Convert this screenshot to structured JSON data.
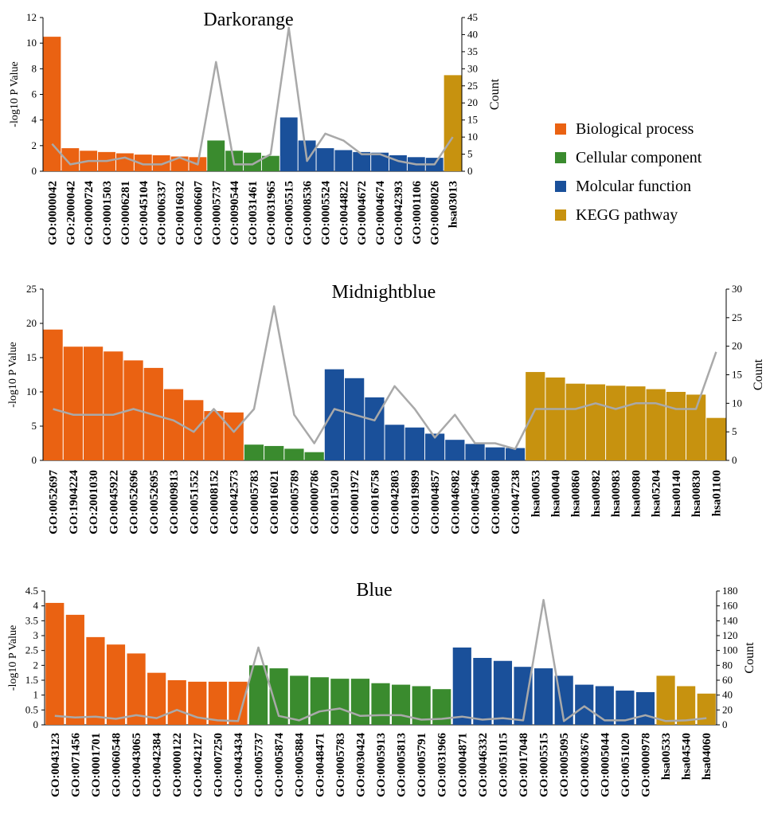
{
  "legend": {
    "items": [
      {
        "label": "Biological process",
        "color": "#EA6212"
      },
      {
        "label": "Cellular component",
        "color": "#3A8B2E"
      },
      {
        "label": "Molcular function",
        "color": "#1A509A"
      },
      {
        "label": "KEGG pathway",
        "color": "#C7920F"
      }
    ]
  },
  "line_color": "#A9A9A9",
  "chart_data": [
    {
      "type": "bar",
      "title": "Darkorange",
      "ylabel": "-log10 P Value",
      "y2label": "Count",
      "ylim": [
        0,
        12
      ],
      "y2lim": [
        0,
        45
      ],
      "yticks": [
        "0",
        "2",
        "4",
        "6",
        "8",
        "10",
        "12"
      ],
      "y2ticks": [
        "0",
        "5",
        "10",
        "15",
        "20",
        "25",
        "30",
        "35",
        "40",
        "45"
      ],
      "categories": [
        "GO:0000042",
        "GO:2000042",
        "GO:0000724",
        "GO:0001503",
        "GO:0006281",
        "GO:0045104",
        "GO:0006337",
        "GO:0016032",
        "GO:0006607",
        "GO:0005737",
        "GO:0090544",
        "GO:0031461",
        "GO:0031965",
        "GO:0005515",
        "GO:0008536",
        "GO:0005524",
        "GO:0044822",
        "GO:0004672",
        "GO:0004674",
        "GO:0042393",
        "GO:0001106",
        "GO:0008026",
        "hsa03013"
      ],
      "groups": [
        0,
        0,
        0,
        0,
        0,
        0,
        0,
        0,
        0,
        1,
        1,
        1,
        1,
        2,
        2,
        2,
        2,
        2,
        2,
        2,
        2,
        2,
        3
      ],
      "values": [
        10.5,
        1.8,
        1.6,
        1.5,
        1.4,
        1.3,
        1.25,
        1.15,
        1.1,
        2.4,
        1.6,
        1.45,
        1.2,
        4.2,
        2.4,
        1.8,
        1.65,
        1.5,
        1.45,
        1.25,
        1.1,
        1.05,
        7.5
      ],
      "series": [
        {
          "name": "Count",
          "axis": "right",
          "values": [
            8,
            2,
            3,
            3,
            4,
            2,
            2,
            4,
            2,
            32,
            2,
            2,
            5,
            42,
            3,
            11,
            9,
            5,
            5,
            3,
            2,
            2,
            10
          ]
        }
      ]
    },
    {
      "type": "bar",
      "title": "Midnightblue",
      "ylabel": "-log10 P Value",
      "y2label": "Count",
      "ylim": [
        0,
        25
      ],
      "y2lim": [
        0,
        30
      ],
      "yticks": [
        "0",
        "5",
        "10",
        "15",
        "20",
        "25"
      ],
      "y2ticks": [
        "0",
        "5",
        "10",
        "15",
        "20",
        "25",
        "30"
      ],
      "categories": [
        "GO:0052697",
        "GO:1904224",
        "GO:2001030",
        "GO:0045922",
        "GO:0052696",
        "GO:0052695",
        "GO:0009813",
        "GO:0051552",
        "GO:0008152",
        "GO:0042573",
        "GO:0005783",
        "GO:0016021",
        "GO:0005789",
        "GO:0000786",
        "GO:0015020",
        "GO:0001972",
        "GO:0016758",
        "GO:0042803",
        "GO:0019899",
        "GO:0004857",
        "GO:0046982",
        "GO:0005496",
        "GO:0005080",
        "GO:0047238",
        "hsa00053",
        "hsa00040",
        "hsa00860",
        "hsa00982",
        "hsa00983",
        "hsa00980",
        "hsa05204",
        "hsa00140",
        "hsa00830",
        "hsa01100"
      ],
      "groups": [
        0,
        0,
        0,
        0,
        0,
        0,
        0,
        0,
        0,
        0,
        1,
        1,
        1,
        1,
        2,
        2,
        2,
        2,
        2,
        2,
        2,
        2,
        2,
        2,
        3,
        3,
        3,
        3,
        3,
        3,
        3,
        3,
        3,
        3
      ],
      "values": [
        19.1,
        16.6,
        16.6,
        15.9,
        14.6,
        13.5,
        10.4,
        8.8,
        7.2,
        7.0,
        2.3,
        2.1,
        1.7,
        1.2,
        13.3,
        12.0,
        9.2,
        5.2,
        4.8,
        3.9,
        3.0,
        2.4,
        1.9,
        1.8,
        12.9,
        12.1,
        11.2,
        11.1,
        10.9,
        10.8,
        10.4,
        10.0,
        9.6,
        6.2
      ],
      "series": [
        {
          "name": "Count",
          "axis": "right",
          "values": [
            9,
            8,
            8,
            8,
            9,
            8,
            7,
            5,
            9,
            5,
            9,
            27,
            8,
            3,
            9,
            8,
            7,
            13,
            9,
            4,
            8,
            3,
            3,
            2,
            9,
            9,
            9,
            10,
            9,
            10,
            10,
            9,
            9,
            19
          ]
        }
      ]
    },
    {
      "type": "bar",
      "title": "Blue",
      "ylabel": "-log10 P Value",
      "y2label": "Count",
      "ylim": [
        0,
        4.5
      ],
      "y2lim": [
        0,
        180
      ],
      "yticks": [
        "0",
        "0.5",
        "1",
        "1.5",
        "2",
        "2.5",
        "3",
        "3.5",
        "4",
        "4.5"
      ],
      "y2ticks": [
        "0",
        "20",
        "40",
        "60",
        "80",
        "100",
        "120",
        "140",
        "160",
        "180"
      ],
      "categories": [
        "GO:0043123",
        "GO:0071456",
        "GO:0001701",
        "GO:0060548",
        "GO:0043065",
        "GO:0042384",
        "GO:0000122",
        "GO:0042127",
        "GO:0007250",
        "GO:0043434",
        "GO:0005737",
        "GO:0005874",
        "GO:0005884",
        "GO:0048471",
        "GO:0005783",
        "GO:0030424",
        "GO:0005913",
        "GO:0005813",
        "GO:0005791",
        "GO:0031966",
        "GO:0004871",
        "GO:0046332",
        "GO:0051015",
        "GO:0017048",
        "GO:0005515",
        "GO:0005095",
        "GO:0003676",
        "GO:0005044",
        "GO:0051020",
        "GO:0000978",
        "hsa00533",
        "hsa04540",
        "hsa04060"
      ],
      "groups": [
        0,
        0,
        0,
        0,
        0,
        0,
        0,
        0,
        0,
        0,
        1,
        1,
        1,
        1,
        1,
        1,
        1,
        1,
        1,
        1,
        2,
        2,
        2,
        2,
        2,
        2,
        2,
        2,
        2,
        2,
        3,
        3,
        3
      ],
      "values": [
        4.1,
        3.7,
        2.95,
        2.7,
        2.4,
        1.75,
        1.5,
        1.45,
        1.45,
        1.45,
        2.0,
        1.9,
        1.65,
        1.6,
        1.55,
        1.55,
        1.4,
        1.35,
        1.3,
        1.2,
        2.6,
        2.25,
        2.15,
        1.95,
        1.9,
        1.65,
        1.35,
        1.3,
        1.15,
        1.1,
        1.65,
        1.3,
        1.05
      ],
      "series": [
        {
          "name": "Count",
          "axis": "right",
          "values": [
            12,
            10,
            11,
            8,
            13,
            9,
            20,
            10,
            6,
            5,
            104,
            12,
            6,
            18,
            22,
            12,
            13,
            13,
            7,
            8,
            11,
            7,
            9,
            6,
            168,
            5,
            25,
            6,
            6,
            13,
            5,
            6,
            9
          ]
        }
      ]
    }
  ]
}
